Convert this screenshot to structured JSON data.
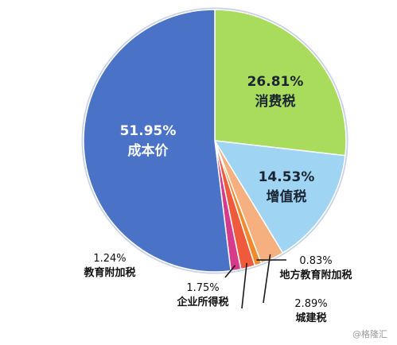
{
  "chart_data": {
    "type": "pie",
    "slices": [
      {
        "label": "消费税",
        "value": 26.81,
        "value_text": "26.81%",
        "color": "#a9db5c"
      },
      {
        "label": "增值税",
        "value": 14.53,
        "value_text": "14.53%",
        "color": "#9fd4f3"
      },
      {
        "label": "城建税",
        "value": 2.89,
        "value_text": "2.89%",
        "color": "#f6b07f"
      },
      {
        "label": "地方教育附加税",
        "value": 0.83,
        "value_text": "0.83%",
        "color": "#f08a2c"
      },
      {
        "label": "企业所得税",
        "value": 1.75,
        "value_text": "1.75%",
        "color": "#ef5a3c"
      },
      {
        "label": "教育附加税",
        "value": 1.24,
        "value_text": "1.24%",
        "color": "#d63a8a"
      },
      {
        "label": "成本价",
        "value": 51.95,
        "value_text": "51.95%",
        "color": "#4a73c8"
      }
    ],
    "start": "12 o'clock",
    "direction": "clockwise"
  },
  "watermark": "@格隆汇"
}
